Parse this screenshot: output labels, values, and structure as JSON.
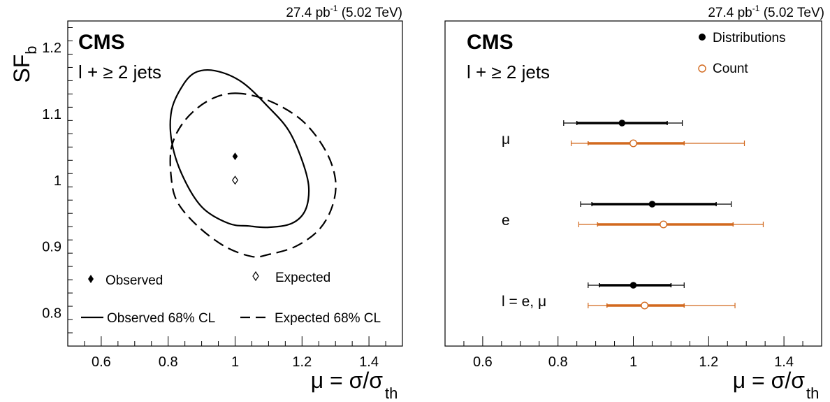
{
  "chart_data": [
    {
      "type": "scatter",
      "lumi_label": "27.4 pb",
      "lumi_exponent": "-1",
      "energy_label": "(5.02 TeV)",
      "cms_label": "CMS",
      "channel_label": "l + ≥ 2 jets",
      "xlabel": "μ = σ/σ",
      "xlabel_sub": "th",
      "ylabel": "SF",
      "ylabel_sub": "b",
      "xlim": [
        0.5,
        1.5
      ],
      "ylim": [
        0.75,
        1.24
      ],
      "xticks": [
        "0.6",
        "0.8",
        "1",
        "1.2",
        "1.4"
      ],
      "xtick_values": [
        0.6,
        0.8,
        1.0,
        1.2,
        1.4
      ],
      "yticks": [
        "0.8",
        "0.9",
        "1",
        "1.1",
        "1.2"
      ],
      "ytick_values": [
        0.8,
        0.9,
        1.0,
        1.1,
        1.2
      ],
      "points": [
        {
          "name": "Observed",
          "x": 1.0,
          "y": 1.036,
          "marker": "filled-diamond"
        },
        {
          "name": "Expected",
          "x": 1.0,
          "y": 1.0,
          "marker": "open-diamond"
        }
      ],
      "contours": [
        {
          "name": "Observed 68% CL",
          "style": "solid",
          "points": [
            [
              0.94,
              1.165
            ],
            [
              1.02,
              1.148
            ],
            [
              1.1,
              1.11
            ],
            [
              1.16,
              1.075
            ],
            [
              1.2,
              1.03
            ],
            [
              1.22,
              0.99
            ],
            [
              1.21,
              0.955
            ],
            [
              1.17,
              0.935
            ],
            [
              1.1,
              0.929
            ],
            [
              1.04,
              0.931
            ],
            [
              0.98,
              0.935
            ],
            [
              0.9,
              0.96
            ],
            [
              0.84,
              1.01
            ],
            [
              0.81,
              1.06
            ],
            [
              0.81,
              1.105
            ],
            [
              0.84,
              1.14
            ],
            [
              0.88,
              1.162
            ]
          ]
        },
        {
          "name": "Expected 68% CL",
          "style": "dashed",
          "points": [
            [
              1.0,
              1.131
            ],
            [
              1.1,
              1.12
            ],
            [
              1.2,
              1.09
            ],
            [
              1.27,
              1.045
            ],
            [
              1.3,
              1.0
            ],
            [
              1.29,
              0.96
            ],
            [
              1.25,
              0.925
            ],
            [
              1.18,
              0.9
            ],
            [
              1.1,
              0.888
            ],
            [
              1.05,
              0.885
            ],
            [
              0.97,
              0.9
            ],
            [
              0.89,
              0.93
            ],
            [
              0.83,
              0.965
            ],
            [
              0.81,
              1.0
            ],
            [
              0.81,
              1.05
            ],
            [
              0.85,
              1.09
            ],
            [
              0.92,
              1.12
            ]
          ]
        }
      ],
      "legend": [
        {
          "label": "Observed",
          "marker": "filled-diamond"
        },
        {
          "label": "Expected",
          "marker": "open-diamond"
        },
        {
          "label": "Observed 68% CL",
          "marker": "solid-line"
        },
        {
          "label": "Expected 68% CL",
          "marker": "dashed-line"
        }
      ]
    },
    {
      "type": "scatter",
      "lumi_label": "27.4 pb",
      "lumi_exponent": "-1",
      "energy_label": "(5.02 TeV)",
      "cms_label": "CMS",
      "channel_label": "l + ≥ 2 jets",
      "xlabel": "μ = σ/σ",
      "xlabel_sub": "th",
      "xlim": [
        0.5,
        1.5
      ],
      "xticks": [
        "0.6",
        "0.8",
        "1",
        "1.2",
        "1.4"
      ],
      "xtick_values": [
        0.6,
        0.8,
        1.0,
        1.2,
        1.4
      ],
      "categories": [
        "μ",
        "e",
        "l = e, μ"
      ],
      "series": [
        {
          "name": "Distributions",
          "color": "#000000",
          "marker": "filled-circle",
          "values": [
            0.97,
            1.05,
            1.0
          ],
          "inner": [
            [
              0.85,
              1.09
            ],
            [
              0.89,
              1.22
            ],
            [
              0.91,
              1.1
            ]
          ],
          "outer": [
            [
              0.815,
              1.13
            ],
            [
              0.86,
              1.26
            ],
            [
              0.88,
              1.135
            ]
          ]
        },
        {
          "name": "Count",
          "color": "#d2691e",
          "marker": "open-circle",
          "values": [
            1.0,
            1.08,
            1.03
          ],
          "inner": [
            [
              0.88,
              1.135
            ],
            [
              0.905,
              1.265
            ],
            [
              0.93,
              1.135
            ]
          ],
          "outer": [
            [
              0.835,
              1.295
            ],
            [
              0.855,
              1.345
            ],
            [
              0.88,
              1.27
            ]
          ]
        }
      ]
    }
  ]
}
